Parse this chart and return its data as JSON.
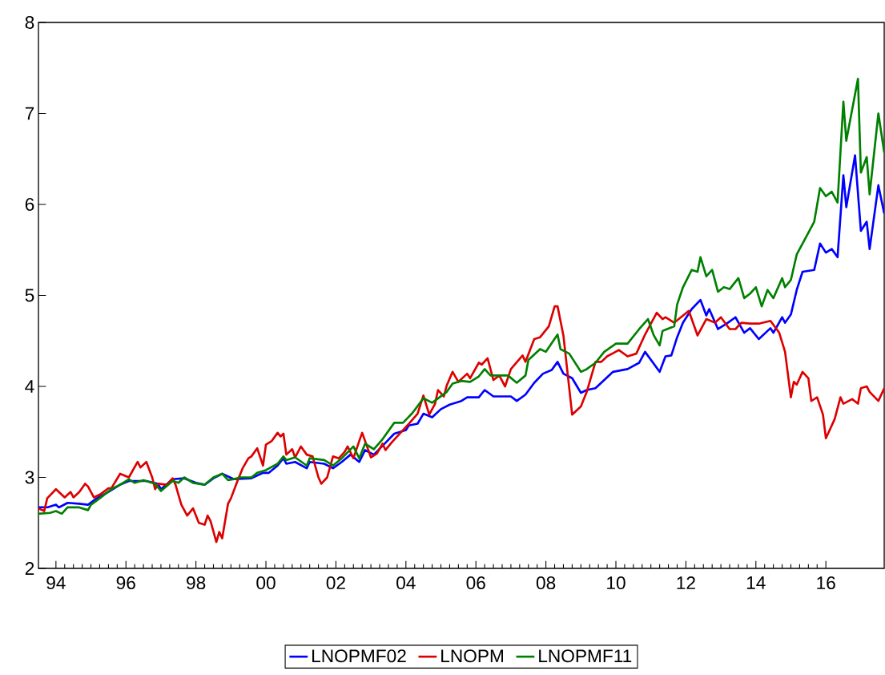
{
  "chart_data": {
    "type": "line",
    "legend": "bottom",
    "marker": "none",
    "line_style": "solid",
    "xlim": [
      "1994-01",
      "2018-03"
    ],
    "ylim": [
      2,
      8
    ],
    "yticks": [
      2,
      3,
      4,
      5,
      6,
      7,
      8
    ],
    "xticks": [
      {
        "value": "1994-07",
        "label": "94"
      },
      {
        "value": "1996-07",
        "label": "96"
      },
      {
        "value": "1998-07",
        "label": "98"
      },
      {
        "value": "2000-07",
        "label": "00"
      },
      {
        "value": "2002-07",
        "label": "02"
      },
      {
        "value": "2004-07",
        "label": "04"
      },
      {
        "value": "2006-07",
        "label": "06"
      },
      {
        "value": "2008-07",
        "label": "08"
      },
      {
        "value": "2010-07",
        "label": "10"
      },
      {
        "value": "2012-07",
        "label": "12"
      },
      {
        "value": "2014-07",
        "label": "14"
      },
      {
        "value": "2016-07",
        "label": "16"
      }
    ],
    "series": [
      {
        "name": "LNOPMF02",
        "color": "#0000ff",
        "x": [
          "1994-01",
          "1994-04",
          "1994-07",
          "1994-08",
          "1994-11",
          "1995-03",
          "1995-06",
          "1995-09",
          "1996-01",
          "1996-05",
          "1996-08",
          "1997-02",
          "1997-06",
          "1997-07",
          "1997-11",
          "1998-03",
          "1998-07",
          "1998-10",
          "1999-01",
          "1999-04",
          "1999-08",
          "2000-02",
          "2000-06",
          "2000-08",
          "2000-11",
          "2001-01",
          "2001-02",
          "2001-05",
          "2001-09",
          "2001-10",
          "2002-03",
          "2002-06",
          "2002-09",
          "2002-12",
          "2003-03",
          "2003-05",
          "2003-08",
          "2003-12",
          "2004-03",
          "2004-07",
          "2004-08",
          "2004-11",
          "2005-01",
          "2005-04",
          "2005-07",
          "2005-10",
          "2006-02",
          "2006-04",
          "2006-08",
          "2006-10",
          "2007-01",
          "2007-07",
          "2007-09",
          "2007-12",
          "2008-03",
          "2008-06",
          "2008-09",
          "2008-11",
          "2009-01",
          "2009-04",
          "2009-07",
          "2009-09",
          "2009-12",
          "2010-03",
          "2010-06",
          "2010-11",
          "2011-03",
          "2011-05",
          "2011-10",
          "2011-12",
          "2012-02",
          "2012-04",
          "2012-06",
          "2012-09",
          "2012-12",
          "2013-02",
          "2013-03",
          "2013-06",
          "2013-09",
          "2013-12",
          "2014-03",
          "2014-05",
          "2014-08",
          "2014-12",
          "2015-01",
          "2015-04",
          "2015-05",
          "2015-07",
          "2015-09",
          "2015-11",
          "2016-03",
          "2016-05",
          "2016-07",
          "2016-09",
          "2016-11",
          "2017-01",
          "2017-02",
          "2017-05",
          "2017-07",
          "2017-09",
          "2017-10",
          "2018-01",
          "2018-03"
        ],
        "values": [
          2.67,
          2.67,
          2.7,
          2.67,
          2.72,
          2.71,
          2.7,
          2.77,
          2.84,
          2.92,
          2.96,
          2.96,
          2.93,
          2.87,
          2.98,
          2.99,
          2.94,
          2.92,
          2.99,
          3.04,
          2.98,
          2.99,
          3.05,
          3.05,
          3.13,
          3.21,
          3.15,
          3.17,
          3.1,
          3.17,
          3.15,
          3.1,
          3.17,
          3.25,
          3.17,
          3.3,
          3.25,
          3.38,
          3.48,
          3.52,
          3.57,
          3.59,
          3.7,
          3.66,
          3.75,
          3.8,
          3.84,
          3.88,
          3.88,
          3.96,
          3.89,
          3.89,
          3.84,
          3.91,
          4.04,
          4.14,
          4.18,
          4.27,
          4.14,
          4.09,
          3.93,
          3.96,
          3.98,
          4.07,
          4.16,
          4.19,
          4.26,
          4.38,
          4.16,
          4.33,
          4.34,
          4.54,
          4.7,
          4.85,
          4.95,
          4.78,
          4.85,
          4.63,
          4.69,
          4.76,
          4.59,
          4.64,
          4.52,
          4.64,
          4.59,
          4.76,
          4.7,
          4.79,
          5.06,
          5.26,
          5.28,
          5.57,
          5.47,
          5.51,
          5.42,
          6.32,
          5.97,
          6.54,
          5.71,
          5.81,
          5.51,
          6.21,
          5.9
        ]
      },
      {
        "name": "LNOPM",
        "color": "#dd0000",
        "x": [
          "1994-01",
          "1994-03",
          "1994-04",
          "1994-07",
          "1994-10",
          "1994-12",
          "1995-01",
          "1995-03",
          "1995-05",
          "1995-06",
          "1995-08",
          "1995-10",
          "1996-01",
          "1996-02",
          "1996-05",
          "1996-08",
          "1996-11",
          "1996-12",
          "1997-02",
          "1997-04",
          "1997-05",
          "1997-06",
          "1997-09",
          "1997-11",
          "1997-12",
          "1998-02",
          "1998-04",
          "1998-06",
          "1998-08",
          "1998-10",
          "1998-11",
          "1998-12",
          "1999-02",
          "1999-03",
          "1999-04",
          "1999-06",
          "1999-07",
          "1999-09",
          "1999-11",
          "2000-01",
          "2000-02",
          "2000-04",
          "2000-06",
          "2000-07",
          "2000-09",
          "2000-11",
          "2000-12",
          "2001-01",
          "2001-02",
          "2001-04",
          "2001-05",
          "2001-07",
          "2001-09",
          "2001-11",
          "2002-01",
          "2002-02",
          "2002-04",
          "2002-06",
          "2002-08",
          "2002-10",
          "2002-11",
          "2003-01",
          "2003-03",
          "2003-04",
          "2003-07",
          "2003-09",
          "2003-11",
          "2003-12",
          "2004-02",
          "2004-04",
          "2004-06",
          "2004-08",
          "2004-11",
          "2005-01",
          "2005-03",
          "2005-05",
          "2005-06",
          "2005-08",
          "2005-09",
          "2005-11",
          "2006-01",
          "2006-04",
          "2006-05",
          "2006-08",
          "2006-09",
          "2006-11",
          "2007-01",
          "2007-03",
          "2007-05",
          "2007-07",
          "2007-11",
          "2007-12",
          "2008-03",
          "2008-05",
          "2008-08",
          "2008-10",
          "2008-11",
          "2009-01",
          "2009-04",
          "2009-07",
          "2009-09",
          "2009-12",
          "2010-02",
          "2010-04",
          "2010-08",
          "2010-11",
          "2011-02",
          "2011-05",
          "2011-09",
          "2011-11",
          "2011-12",
          "2012-03",
          "2012-08",
          "2012-11",
          "2013-02",
          "2013-05",
          "2013-07",
          "2013-10",
          "2013-12",
          "2014-02",
          "2014-05",
          "2014-08",
          "2014-12",
          "2015-03",
          "2015-05",
          "2015-07",
          "2015-08",
          "2015-09",
          "2015-11",
          "2016-01",
          "2016-02",
          "2016-04",
          "2016-06",
          "2016-07",
          "2016-10",
          "2016-12",
          "2017-01",
          "2017-04",
          "2017-06",
          "2017-07",
          "2017-09",
          "2017-10",
          "2018-01",
          "2018-03"
        ],
        "values": [
          2.66,
          2.63,
          2.77,
          2.87,
          2.78,
          2.84,
          2.78,
          2.84,
          2.93,
          2.9,
          2.78,
          2.81,
          2.88,
          2.88,
          3.04,
          3.0,
          3.17,
          3.11,
          3.17,
          3.0,
          2.87,
          2.93,
          2.92,
          2.99,
          2.92,
          2.7,
          2.58,
          2.66,
          2.5,
          2.48,
          2.58,
          2.52,
          2.29,
          2.4,
          2.33,
          2.71,
          2.77,
          2.94,
          3.1,
          3.21,
          3.23,
          3.32,
          3.13,
          3.36,
          3.4,
          3.49,
          3.45,
          3.48,
          3.25,
          3.31,
          3.22,
          3.34,
          3.25,
          3.23,
          3.0,
          2.93,
          3.0,
          3.23,
          3.21,
          3.28,
          3.34,
          3.21,
          3.4,
          3.49,
          3.22,
          3.26,
          3.37,
          3.3,
          3.38,
          3.45,
          3.52,
          3.59,
          3.7,
          3.9,
          3.69,
          3.81,
          3.96,
          3.89,
          4.01,
          4.16,
          4.05,
          4.14,
          4.09,
          4.26,
          4.24,
          4.31,
          4.07,
          4.12,
          4.0,
          4.19,
          4.34,
          4.27,
          4.52,
          4.54,
          4.66,
          4.88,
          4.88,
          4.56,
          3.69,
          3.78,
          3.94,
          4.27,
          4.27,
          4.33,
          4.4,
          4.33,
          4.36,
          4.57,
          4.81,
          4.74,
          4.76,
          4.7,
          4.83,
          4.56,
          4.74,
          4.7,
          4.76,
          4.63,
          4.63,
          4.7,
          4.69,
          4.69,
          4.72,
          4.59,
          4.38,
          3.88,
          4.05,
          4.02,
          4.16,
          4.09,
          3.84,
          3.88,
          3.69,
          3.43,
          3.64,
          3.88,
          3.81,
          3.86,
          3.81,
          3.98,
          4.0,
          3.94,
          3.84,
          3.98
        ]
      },
      {
        "name": "LNOPMF11",
        "color": "#008000",
        "x": [
          "1994-01",
          "1994-05",
          "1994-07",
          "1994-09",
          "1994-11",
          "1995-03",
          "1995-06",
          "1995-07",
          "1995-10",
          "1996-02",
          "1996-05",
          "1996-08",
          "1996-10",
          "1997-01",
          "1997-05",
          "1997-07",
          "1997-11",
          "1998-01",
          "1998-03",
          "1998-06",
          "1998-10",
          "1999-01",
          "1999-04",
          "1999-06",
          "1999-08",
          "1999-10",
          "2000-02",
          "2000-04",
          "2000-07",
          "2000-11",
          "2001-01",
          "2001-02",
          "2001-05",
          "2001-09",
          "2001-10",
          "2002-03",
          "2002-06",
          "2002-09",
          "2003-01",
          "2003-03",
          "2003-05",
          "2003-08",
          "2003-11",
          "2004-03",
          "2004-06",
          "2004-09",
          "2004-10",
          "2005-01",
          "2005-04",
          "2005-09",
          "2005-11",
          "2006-02",
          "2006-05",
          "2006-08",
          "2006-10",
          "2006-12",
          "2007-03",
          "2007-06",
          "2007-09",
          "2007-12",
          "2008-01",
          "2008-05",
          "2008-07",
          "2008-11",
          "2008-12",
          "2009-03",
          "2009-07",
          "2009-09",
          "2009-12",
          "2010-03",
          "2010-07",
          "2010-11",
          "2011-03",
          "2011-06",
          "2011-08",
          "2011-10",
          "2011-11",
          "2012-03",
          "2012-04",
          "2012-06",
          "2012-09",
          "2012-11",
          "2012-12",
          "2013-02",
          "2013-04",
          "2013-06",
          "2013-08",
          "2013-10",
          "2014-01",
          "2014-03",
          "2014-05",
          "2014-07",
          "2014-09",
          "2014-11",
          "2015-01",
          "2015-04",
          "2015-05",
          "2015-07",
          "2015-09",
          "2015-11",
          "2016-03",
          "2016-05",
          "2016-07",
          "2016-09",
          "2016-11",
          "2017-01",
          "2017-02",
          "2017-06",
          "2017-07",
          "2017-09",
          "2017-10",
          "2018-01",
          "2018-03"
        ],
        "values": [
          2.6,
          2.61,
          2.63,
          2.6,
          2.67,
          2.67,
          2.64,
          2.7,
          2.77,
          2.87,
          2.92,
          2.98,
          2.94,
          2.97,
          2.93,
          2.85,
          2.96,
          2.94,
          3.0,
          2.94,
          2.92,
          3.0,
          3.04,
          2.97,
          2.98,
          3.0,
          3.0,
          3.05,
          3.08,
          3.15,
          3.23,
          3.19,
          3.22,
          3.13,
          3.21,
          3.19,
          3.13,
          3.21,
          3.34,
          3.21,
          3.37,
          3.31,
          3.42,
          3.6,
          3.6,
          3.7,
          3.74,
          3.87,
          3.82,
          3.94,
          4.03,
          4.06,
          4.05,
          4.11,
          4.19,
          4.12,
          4.12,
          4.12,
          4.04,
          4.12,
          4.29,
          4.41,
          4.38,
          4.57,
          4.41,
          4.36,
          4.16,
          4.19,
          4.26,
          4.38,
          4.47,
          4.47,
          4.63,
          4.74,
          4.56,
          4.45,
          4.61,
          4.66,
          4.9,
          5.09,
          5.28,
          5.26,
          5.42,
          5.21,
          5.28,
          5.04,
          5.09,
          5.07,
          5.19,
          4.97,
          5.02,
          5.09,
          4.88,
          5.06,
          4.97,
          5.19,
          5.09,
          5.17,
          5.45,
          5.57,
          5.81,
          6.18,
          6.09,
          6.14,
          6.02,
          7.13,
          6.7,
          7.38,
          6.35,
          6.52,
          6.11,
          7.0,
          6.57
        ]
      }
    ]
  }
}
